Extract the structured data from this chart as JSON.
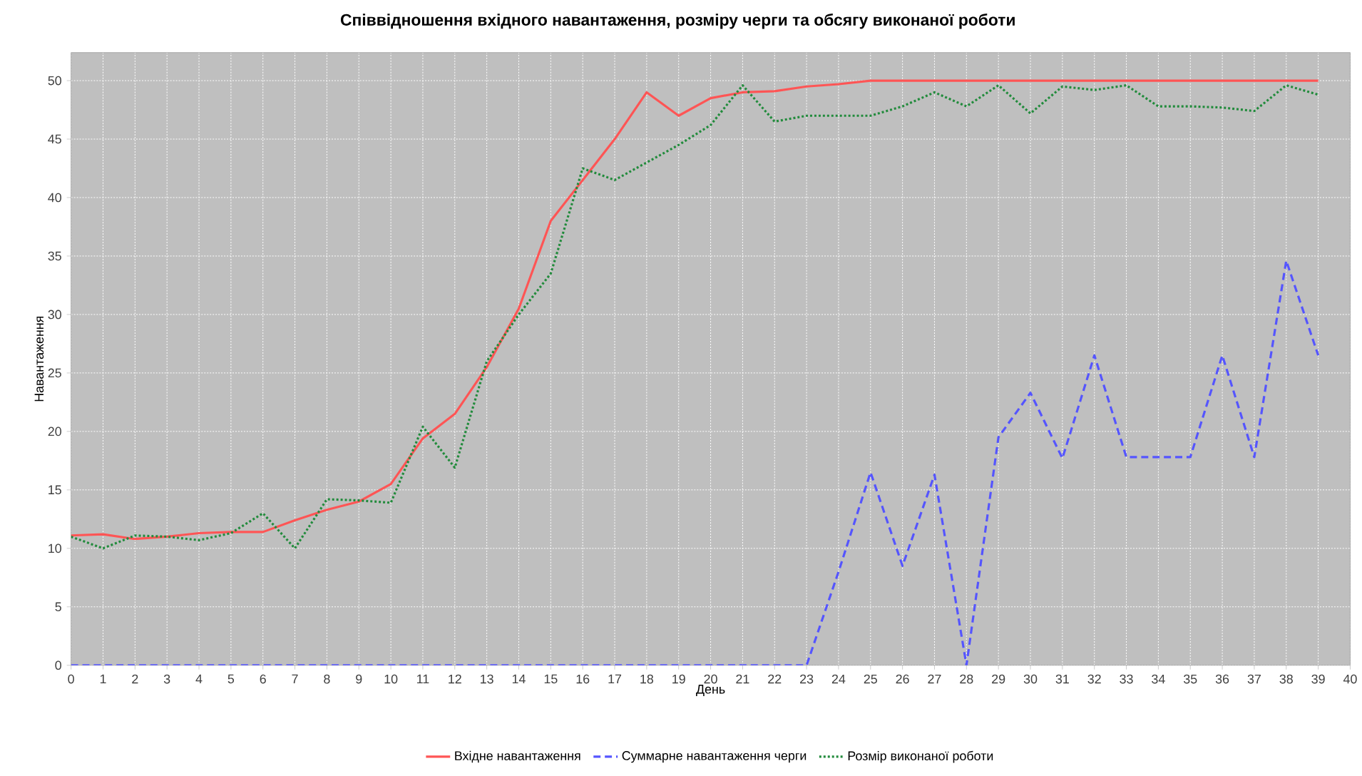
{
  "chart_data": {
    "type": "line",
    "title": "Співвідношення вхідного навантаження, розміру черги та обсягу виконаної роботи",
    "xlabel": "День",
    "ylabel": "Навантаження",
    "x": [
      0,
      1,
      2,
      3,
      4,
      5,
      6,
      7,
      8,
      9,
      10,
      11,
      12,
      13,
      14,
      15,
      16,
      17,
      18,
      19,
      20,
      21,
      22,
      23,
      24,
      25,
      26,
      27,
      28,
      29,
      30,
      31,
      32,
      33,
      34,
      35,
      36,
      37,
      38,
      39
    ],
    "series": [
      {
        "name": "Вхідне навантаження",
        "color": "#ff5555",
        "line_style": "solid",
        "values": [
          11.1,
          11.2,
          10.8,
          11,
          11.3,
          11.4,
          11.4,
          12.4,
          13.3,
          14,
          15.5,
          19.4,
          21.5,
          25.5,
          30.5,
          38,
          41.5,
          45,
          49,
          47,
          48.5,
          49,
          49.1,
          49.5,
          49.7,
          50,
          50,
          50,
          50,
          50,
          50,
          50,
          50,
          50,
          50,
          50,
          50,
          50,
          50,
          50
        ]
      },
      {
        "name": "Суммарне навантаження черги",
        "color": "#5555ff",
        "line_style": "dashed",
        "values": [
          0,
          0,
          0,
          0,
          0,
          0,
          0,
          0,
          0,
          0,
          0,
          0,
          0,
          0,
          0,
          0,
          0,
          0,
          0,
          0,
          0,
          0,
          0,
          0,
          8,
          16.5,
          8.5,
          16.3,
          0,
          19.5,
          23.3,
          17.7,
          26.5,
          17.8,
          17.8,
          17.8,
          26.5,
          17.8,
          34.6,
          26.5
        ]
      },
      {
        "name": "Розмір виконаної роботи",
        "color": "#228b3c",
        "line_style": "dotted",
        "values": [
          11,
          10,
          11.1,
          11,
          10.7,
          11.3,
          13,
          10,
          14.2,
          14.1,
          13.9,
          20.4,
          16.9,
          26,
          30,
          33.5,
          42.5,
          41.5,
          43,
          44.5,
          46.2,
          49.6,
          46.5,
          47,
          47,
          47,
          47.8,
          49,
          47.8,
          49.6,
          47.2,
          49.5,
          49.2,
          49.6,
          47.8,
          47.8,
          47.7,
          47.4,
          49.6,
          48.8
        ]
      }
    ],
    "xlim": [
      0,
      40
    ],
    "xticks": [
      0,
      1,
      2,
      3,
      4,
      5,
      6,
      7,
      8,
      9,
      10,
      11,
      12,
      13,
      14,
      15,
      16,
      17,
      18,
      19,
      20,
      21,
      22,
      23,
      24,
      25,
      26,
      27,
      28,
      29,
      30,
      31,
      32,
      33,
      34,
      35,
      36,
      37,
      38,
      39,
      40
    ],
    "ylim": [
      0,
      52.4
    ],
    "yticks": [
      0,
      5,
      10,
      15,
      20,
      25,
      30,
      35,
      40,
      45,
      50
    ],
    "grid": true,
    "legend": "bottom",
    "marker": "none"
  }
}
